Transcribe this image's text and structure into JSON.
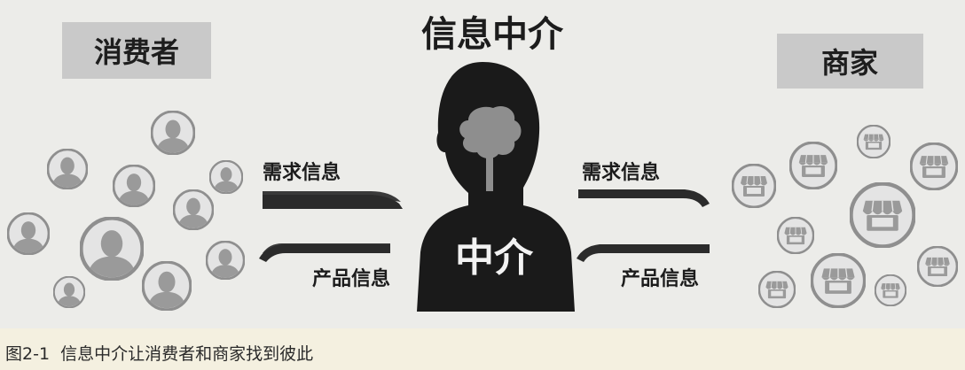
{
  "title": "信息中介",
  "left_label": "消费者",
  "right_label": "商家",
  "center_label": "中介",
  "arrows": {
    "left_top": "需求信息",
    "left_bottom": "产品信息",
    "right_top": "需求信息",
    "right_bottom": "产品信息"
  },
  "caption": "图2-1  信息中介让消费者和商家找到彼此",
  "icons": {
    "consumer": "person-icon",
    "merchant": "shop-icon",
    "intermediary": "head-silhouette-icon"
  },
  "colors": {
    "background": "#ecece9",
    "caption_background": "#f4f0e0",
    "dark": "#1c1c1c",
    "gray": "#8c8c8c",
    "label_box": "#c9c9c9"
  }
}
